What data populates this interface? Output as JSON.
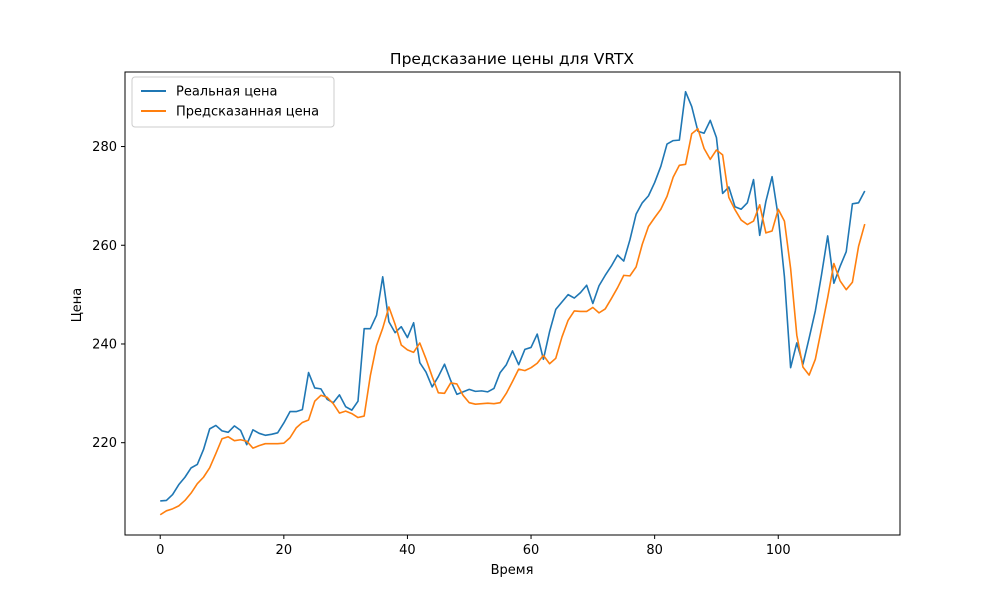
{
  "chart_data": {
    "type": "line",
    "title": "Предсказание цены для VRTX",
    "xlabel": "Время",
    "ylabel": "Цена",
    "xlim": [
      -5.7,
      119.7
    ],
    "ylim": [
      201.3,
      295.1
    ],
    "xticks": [
      0,
      20,
      40,
      60,
      80,
      100
    ],
    "yticks": [
      220,
      240,
      260,
      280
    ],
    "grid": false,
    "legend_position": "top-left",
    "x_start": 0,
    "x_step": 1,
    "series": [
      {
        "name": "Реальная цена",
        "color": "#1f77b4",
        "values": [
          208.2,
          208.3,
          209.5,
          211.5,
          213.0,
          214.9,
          215.6,
          218.6,
          222.8,
          223.5,
          222.4,
          222.1,
          223.4,
          222.5,
          219.6,
          222.6,
          221.9,
          221.5,
          221.7,
          222.0,
          224.0,
          226.3,
          226.3,
          226.7,
          234.2,
          231.1,
          230.9,
          228.8,
          228.1,
          229.7,
          227.3,
          226.6,
          228.4,
          243.1,
          243.1,
          245.8,
          253.6,
          244.5,
          242.3,
          243.5,
          241.3,
          244.3,
          236.2,
          234.3,
          231.3,
          233.4,
          235.9,
          232.6,
          229.8,
          230.3,
          230.8,
          230.4,
          230.5,
          230.3,
          231.0,
          234.2,
          235.8,
          238.6,
          235.8,
          238.9,
          239.3,
          242.0,
          236.9,
          242.5,
          247.0,
          248.5,
          250.0,
          249.3,
          250.4,
          251.9,
          248.2,
          251.8,
          253.9,
          255.8,
          258.0,
          256.8,
          261.1,
          266.3,
          268.6,
          270.0,
          272.7,
          276.0,
          280.5,
          281.2,
          281.3,
          291.1,
          288.1,
          283.1,
          282.7,
          285.3,
          281.8,
          270.5,
          271.8,
          267.8,
          267.3,
          268.6,
          273.3,
          262.0,
          268.9,
          273.9,
          265.8,
          253.6,
          235.2,
          240.2,
          235.9,
          241.2,
          246.7,
          254.0,
          261.9,
          252.3,
          255.7,
          258.7,
          268.4,
          268.6,
          271.0
        ]
      },
      {
        "name": "Предсказанная цена",
        "color": "#ff7f0e",
        "values": [
          205.4,
          206.2,
          206.6,
          207.2,
          208.3,
          209.8,
          211.7,
          213.0,
          214.9,
          217.8,
          220.8,
          221.2,
          220.4,
          220.6,
          220.3,
          218.9,
          219.4,
          219.8,
          219.8,
          219.8,
          219.9,
          221.0,
          223.0,
          224.1,
          224.6,
          228.4,
          229.6,
          229.2,
          227.9,
          226.0,
          226.4,
          225.9,
          225.1,
          225.4,
          233.6,
          239.7,
          243.2,
          247.5,
          244.0,
          239.8,
          238.8,
          238.3,
          240.2,
          237.0,
          233.4,
          230.1,
          230.0,
          232.1,
          231.9,
          229.6,
          228.1,
          227.8,
          227.9,
          228.0,
          227.9,
          228.1,
          230.0,
          232.4,
          234.9,
          234.6,
          235.2,
          236.1,
          237.7,
          236.0,
          237.1,
          241.4,
          244.8,
          246.7,
          246.6,
          246.6,
          247.4,
          246.3,
          247.1,
          249.2,
          251.4,
          253.9,
          253.8,
          255.6,
          260.2,
          263.8,
          265.6,
          267.3,
          269.9,
          273.8,
          276.2,
          276.4,
          282.6,
          283.6,
          279.6,
          277.4,
          279.3,
          278.3,
          269.7,
          267.2,
          265.1,
          264.2,
          264.9,
          268.2,
          262.5,
          262.9,
          267.3,
          264.9,
          255.3,
          241.8,
          235.3,
          233.7,
          236.9,
          243.1,
          249.4,
          256.3,
          252.8,
          251.0,
          252.5,
          259.8,
          264.3
        ]
      }
    ]
  },
  "colors": {
    "axis": "#000000",
    "background": "#ffffff",
    "legend_border": "#cccccc"
  }
}
